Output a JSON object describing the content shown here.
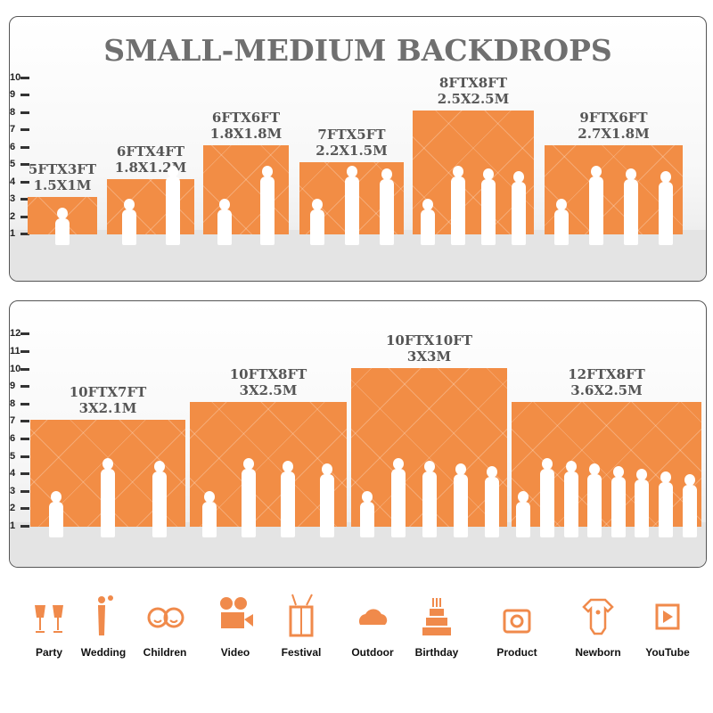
{
  "title": "SMALL-MEDIUM BACKDROPS",
  "accent_color": "#f28d45",
  "panels": [
    {
      "ruler": [
        "1",
        "2",
        "3",
        "4",
        "5",
        "6",
        "7",
        "8",
        "9",
        "10"
      ],
      "backdrops": [
        {
          "ft": "5FTX3FT",
          "m": "1.5X1M",
          "figures": 1
        },
        {
          "ft": "6FTX4FT",
          "m": "1.8X1.2M",
          "figures": 2
        },
        {
          "ft": "6FTX6FT",
          "m": "1.8X1.8M",
          "figures": 2
        },
        {
          "ft": "7FTX5FT",
          "m": "2.2X1.5M",
          "figures": 3
        },
        {
          "ft": "8FTX8FT",
          "m": "2.5X2.5M",
          "figures": 4
        },
        {
          "ft": "9FTX6FT",
          "m": "2.7X1.8M",
          "figures": 4
        }
      ]
    },
    {
      "ruler": [
        "1",
        "2",
        "3",
        "4",
        "5",
        "6",
        "7",
        "8",
        "9",
        "10",
        "11",
        "12"
      ],
      "backdrops": [
        {
          "ft": "10FTX7FT",
          "m": "3X2.1M",
          "figures": 3
        },
        {
          "ft": "10FTX8FT",
          "m": "3X2.5M",
          "figures": 4
        },
        {
          "ft": "10FTX10FT",
          "m": "3X3M",
          "figures": 5
        },
        {
          "ft": "12FTX8FT",
          "m": "3.6X2.5M",
          "figures": 8
        }
      ]
    }
  ],
  "uses": [
    {
      "label": "Party",
      "icon": "champagne-glasses-icon"
    },
    {
      "label": "Wedding",
      "icon": "wedding-couple-icon"
    },
    {
      "label": "Children",
      "icon": "children-faces-icon"
    },
    {
      "label": "Video",
      "icon": "film-camera-icon"
    },
    {
      "label": "Festival",
      "icon": "gift-box-icon"
    },
    {
      "label": "Outdoor",
      "icon": "cloud-icon"
    },
    {
      "label": "Birthday",
      "icon": "birthday-cake-icon"
    },
    {
      "label": "Product",
      "icon": "camera-icon"
    },
    {
      "label": "Newborn",
      "icon": "baby-onesie-icon"
    },
    {
      "label": "YouTube",
      "icon": "play-button-icon"
    }
  ]
}
